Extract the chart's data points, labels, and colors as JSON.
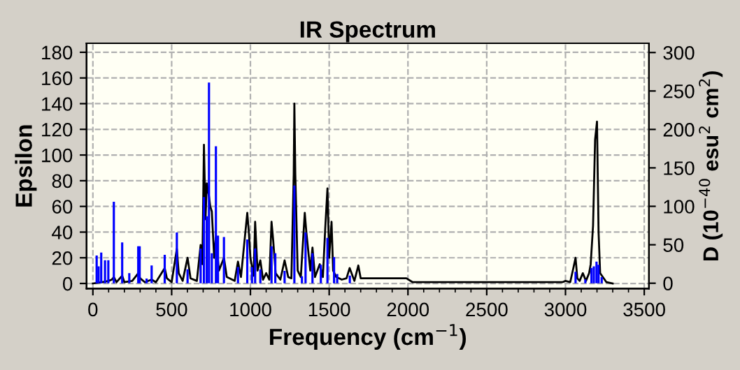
{
  "chart_data": {
    "type": "line",
    "title": "IR Spectrum",
    "xlabel": "Frequency (cm$^{−1}$)",
    "ylabel": "Epsilon",
    "y2label": "D (10$^{−40}$ esu$^{2}$ cm$^{2}$)",
    "xlim": [
      -40,
      3530
    ],
    "xticks": [
      0,
      500,
      1000,
      1500,
      2000,
      2500,
      3000,
      3500
    ],
    "ylim": [
      -4,
      187
    ],
    "yticks": [
      0,
      20,
      40,
      60,
      80,
      100,
      120,
      140,
      160,
      180
    ],
    "y2lim": [
      -7,
      312
    ],
    "y2ticks": [
      0,
      50,
      100,
      150,
      200,
      250,
      300
    ],
    "grid": true,
    "line_style": "solid",
    "series": [
      {
        "color": "#000000",
        "x": [
          0,
          60,
          100,
          120,
          133,
          150,
          186,
          200,
          250,
          288,
          300,
          330,
          373,
          400,
          456,
          470,
          500,
          533,
          545,
          570,
          601,
          620,
          660,
          684,
          695,
          705,
          715,
          723,
          737,
          745,
          755,
          770,
          781,
          800,
          832,
          850,
          900,
          921,
          940,
          980,
          990,
          1000,
          1020,
          1030,
          1045,
          1063,
          1080,
          1100,
          1120,
          1134,
          1145,
          1160,
          1190,
          1217,
          1240,
          1260,
          1275,
          1279,
          1285,
          1300,
          1320,
          1345,
          1355,
          1380,
          1394,
          1410,
          1440,
          1460,
          1475,
          1489,
          1500,
          1515,
          1525,
          1545,
          1580,
          1610,
          1630,
          1660,
          1685,
          1700,
          1800,
          1990,
          2030,
          2980,
          3000,
          3030,
          3050,
          3064,
          3075,
          3090,
          3110,
          3130,
          3150,
          3160,
          3175,
          3188,
          3200,
          3210,
          3220,
          3260,
          3300
        ],
        "values": [
          0,
          1,
          2,
          3,
          5,
          1,
          6,
          1,
          2,
          8,
          4,
          1,
          3,
          1,
          12,
          4,
          1,
          27,
          8,
          2,
          20,
          4,
          2,
          30,
          15,
          108,
          50,
          78,
          68,
          60,
          56,
          20,
          36,
          10,
          20,
          5,
          2,
          17,
          5,
          55,
          40,
          20,
          6,
          48,
          10,
          18,
          3,
          8,
          3,
          48,
          33,
          8,
          3,
          18,
          5,
          4,
          85,
          140,
          85,
          10,
          5,
          55,
          40,
          10,
          28,
          5,
          15,
          5,
          43,
          74,
          20,
          48,
          10,
          5,
          3,
          4,
          12,
          2,
          14,
          4,
          4,
          4,
          1,
          1,
          2,
          1,
          12,
          20,
          4,
          2,
          8,
          2,
          8,
          15,
          45,
          112,
          126,
          40,
          8,
          1,
          0
        ]
      },
      {
        "type": "bar",
        "axis": "y2",
        "color": "#0000ff",
        "x": [
          24,
          36,
          53,
          77,
          98,
          133,
          186,
          231,
          288,
          297,
          341,
          373,
          456,
          533,
          601,
          684,
          705,
          723,
          737,
          755,
          781,
          794,
          832,
          921,
          980,
          1010,
          1030,
          1063,
          1134,
          1158,
          1217,
          1279,
          1327,
          1350,
          1394,
          1447,
          1489,
          1531,
          1551,
          1631,
          3064,
          3126,
          3165,
          3180,
          3197,
          3210,
          3230
        ],
        "values": [
          36,
          22,
          40,
          30,
          30,
          106,
          53,
          13,
          48,
          48,
          6,
          23,
          37,
          66,
          18,
          45,
          112,
          87,
          261,
          39,
          178,
          62,
          60,
          21,
          57,
          21,
          45,
          18,
          48,
          39,
          16,
          127,
          9,
          66,
          39,
          24,
          59,
          34,
          12,
          10,
          15,
          5,
          20,
          22,
          28,
          24,
          8
        ]
      }
    ]
  }
}
